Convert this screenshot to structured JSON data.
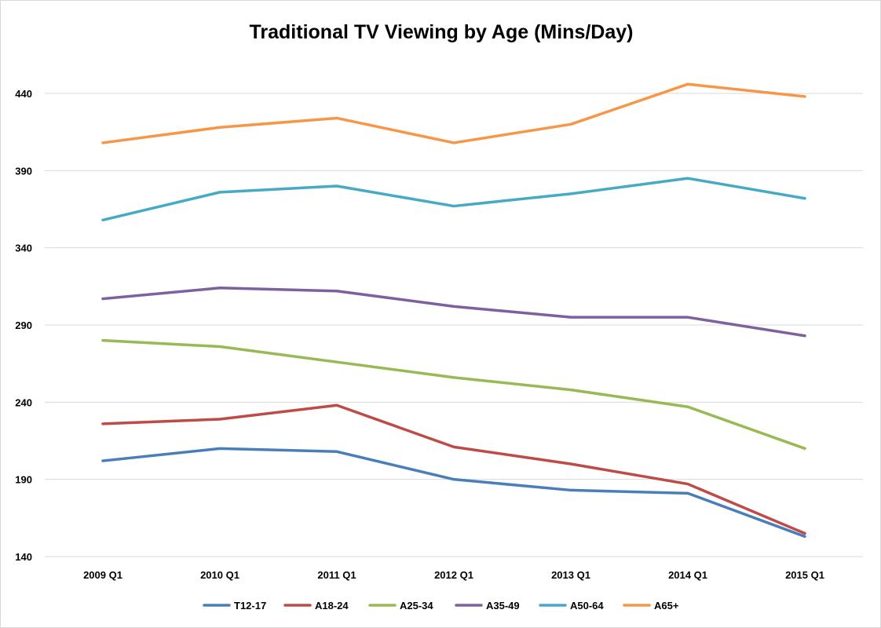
{
  "chart_data": {
    "type": "line",
    "title": "Traditional TV Viewing by Age (Mins/Day)",
    "xlabel": "",
    "ylabel": "",
    "categories": [
      "2009 Q1",
      "2010 Q1",
      "2011 Q1",
      "2012 Q1",
      "2013 Q1",
      "2014 Q1",
      "2015 Q1"
    ],
    "ylim": [
      140,
      440
    ],
    "yticks": [
      140,
      190,
      240,
      290,
      340,
      390,
      440
    ],
    "grid": true,
    "legend_position": "bottom",
    "series": [
      {
        "name": "T12-17",
        "color": "#4a7ebb",
        "values": [
          202,
          210,
          208,
          190,
          183,
          181,
          153
        ]
      },
      {
        "name": "A18-24",
        "color": "#be4b48",
        "values": [
          226,
          229,
          238,
          211,
          200,
          187,
          155
        ]
      },
      {
        "name": "A25-34",
        "color": "#98b954",
        "values": [
          280,
          276,
          266,
          256,
          248,
          237,
          210
        ]
      },
      {
        "name": "A35-49",
        "color": "#7d60a0",
        "values": [
          307,
          314,
          312,
          302,
          295,
          295,
          283
        ]
      },
      {
        "name": "A50-64",
        "color": "#46aac5",
        "values": [
          358,
          376,
          380,
          367,
          375,
          385,
          372
        ]
      },
      {
        "name": "A65+",
        "color": "#f79646",
        "values": [
          408,
          418,
          424,
          408,
          420,
          446,
          438
        ]
      }
    ]
  }
}
